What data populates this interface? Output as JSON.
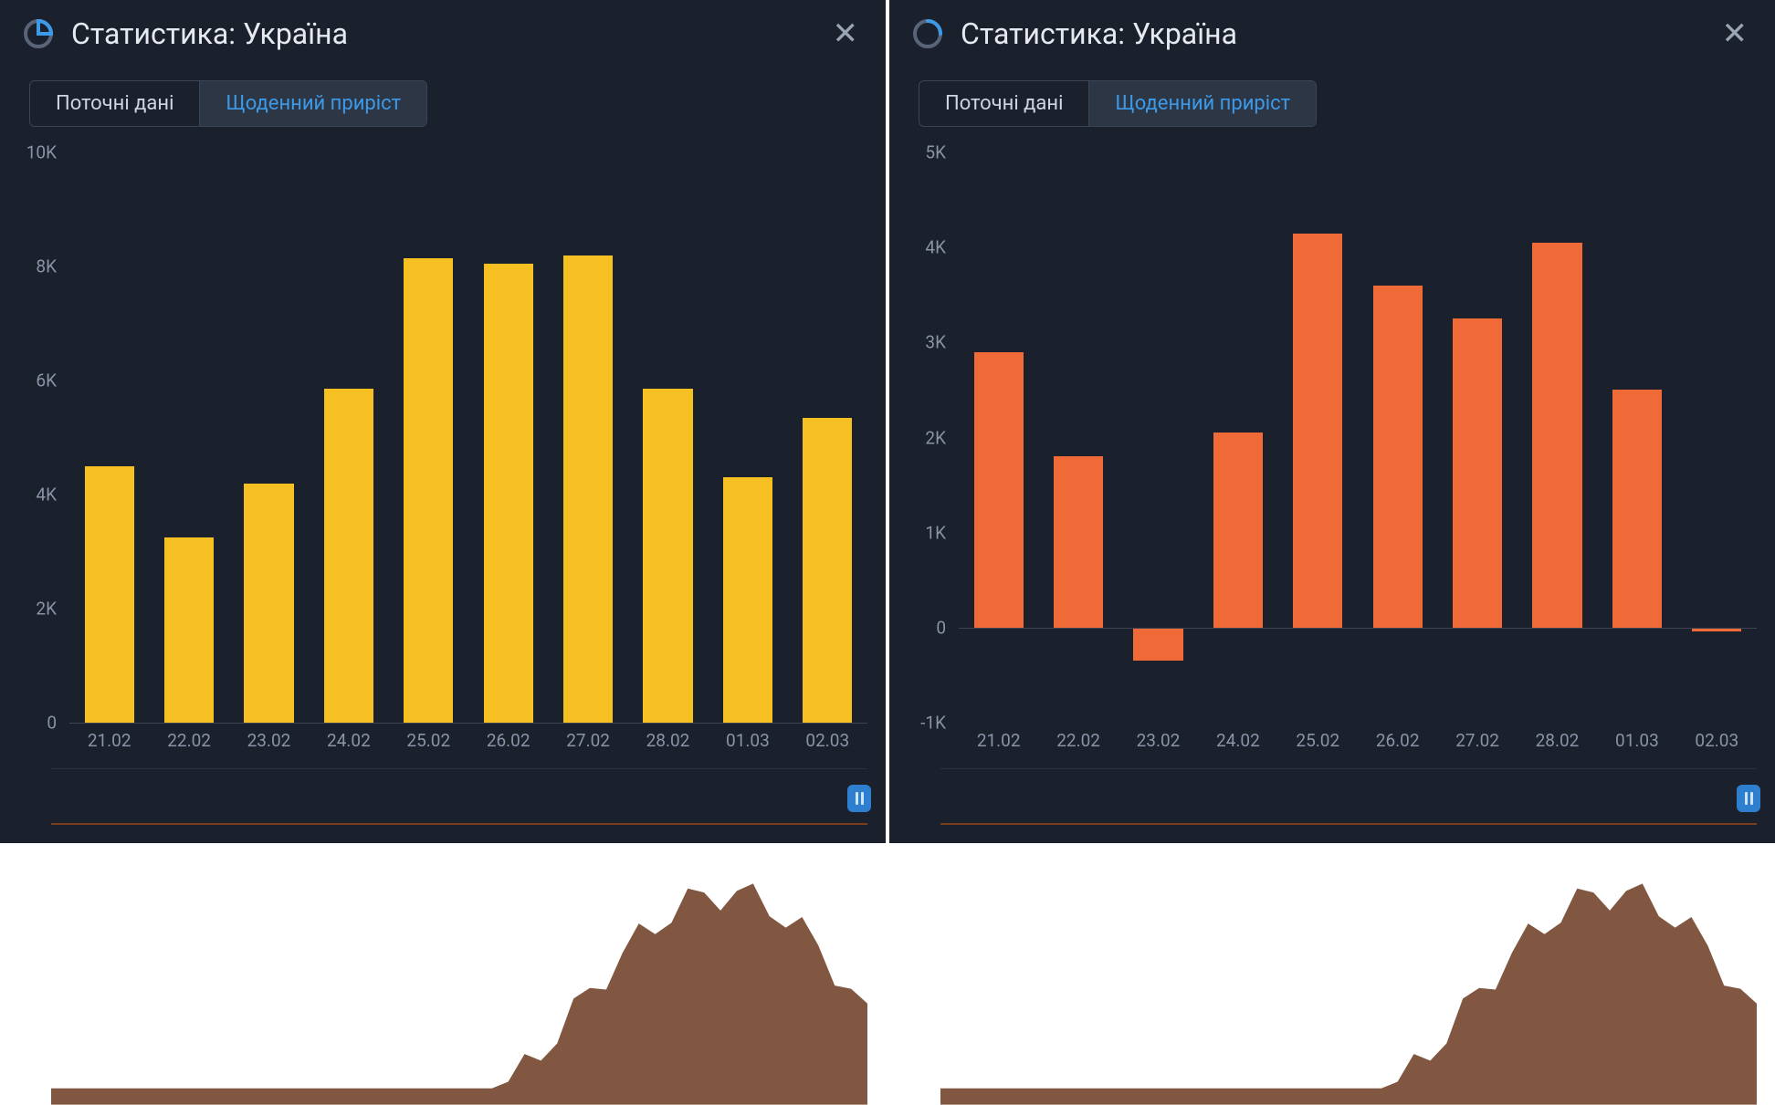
{
  "panels": [
    {
      "id": "left",
      "title": "Статистика: Україна",
      "tabs": {
        "inactive_label": "Поточні дані",
        "active_label": "Щоденний приріст"
      },
      "chart": {
        "type": "bar",
        "bar_color": "#f6c022",
        "grid_color": "#3b4556",
        "background_color": "#1a202c",
        "axis_label_color": "#8a94a6",
        "axis_fontsize": 19,
        "ylim": [
          0,
          10000
        ],
        "yticks": [
          0,
          2000,
          4000,
          6000,
          8000,
          10000
        ],
        "ytick_labels": [
          "0",
          "2K",
          "4K",
          "6K",
          "8K",
          "10K"
        ],
        "categories": [
          "21.02",
          "22.02",
          "23.02",
          "24.02",
          "25.02",
          "26.02",
          "27.02",
          "28.02",
          "01.03",
          "02.03"
        ],
        "values": [
          4500,
          3250,
          4200,
          5850,
          8150,
          8050,
          8200,
          5850,
          4300,
          5350
        ],
        "bar_width_ratio": 0.62
      },
      "timeline": {
        "color": "#6b3a20",
        "baseline_color": "#7c3f1e",
        "handle_color": "#2f7fd1"
      }
    },
    {
      "id": "right",
      "title": "Статистика: Україна",
      "tabs": {
        "inactive_label": "Поточні дані",
        "active_label": "Щоденний приріст"
      },
      "chart": {
        "type": "bar",
        "bar_color": "#ef6a37",
        "grid_color": "#3b4556",
        "background_color": "#1a202c",
        "axis_label_color": "#8a94a6",
        "axis_fontsize": 19,
        "ylim": [
          -1000,
          5000
        ],
        "yticks": [
          -1000,
          0,
          1000,
          2000,
          3000,
          4000,
          5000
        ],
        "ytick_labels": [
          "-1K",
          "0",
          "1K",
          "2K",
          "3K",
          "4K",
          "5K"
        ],
        "categories": [
          "21.02",
          "22.02",
          "23.02",
          "24.02",
          "25.02",
          "26.02",
          "27.02",
          "28.02",
          "01.03",
          "02.03"
        ],
        "values": [
          2900,
          1800,
          -350,
          2050,
          4150,
          3600,
          3250,
          4050,
          2500,
          -40
        ],
        "bar_width_ratio": 0.62
      },
      "timeline": {
        "color": "#6b3a20",
        "baseline_color": "#7c3f1e",
        "handle_color": "#2f7fd1"
      }
    }
  ],
  "icon_color_primary": "#3d9ae8",
  "icon_color_secondary": "#5a6478"
}
